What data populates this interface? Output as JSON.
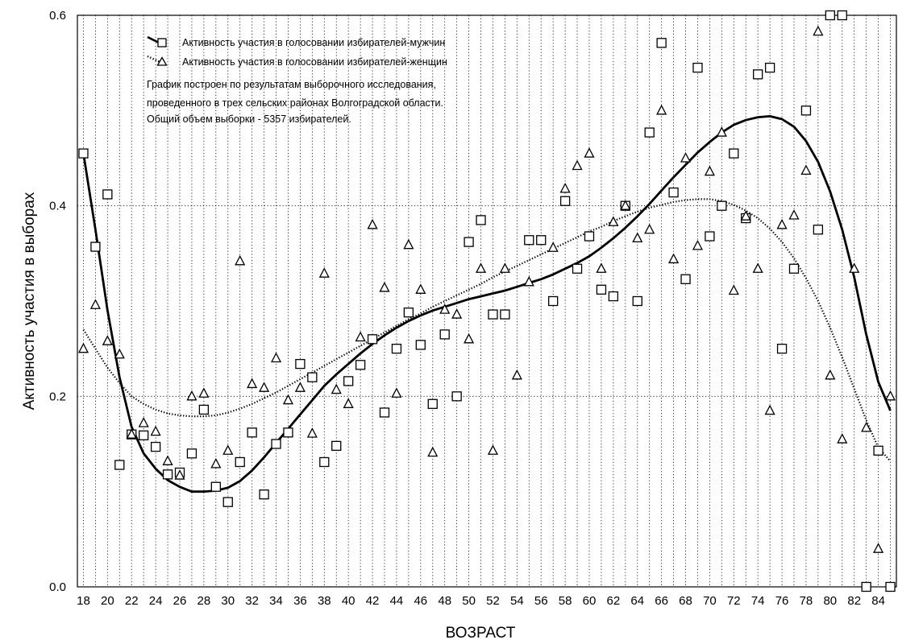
{
  "chart_data": {
    "type": "scatter",
    "xlabel": "ВОЗРАСТ",
    "ylabel": "Активность участия в выборах",
    "xlim": [
      17.5,
      85.5
    ],
    "ylim": [
      0,
      0.6
    ],
    "x_ticks": [
      18,
      20,
      22,
      24,
      26,
      28,
      30,
      32,
      34,
      36,
      38,
      40,
      42,
      44,
      46,
      48,
      50,
      52,
      54,
      56,
      58,
      60,
      62,
      64,
      66,
      68,
      70,
      72,
      74,
      76,
      78,
      80,
      82,
      84
    ],
    "y_ticks": [
      0,
      0.2,
      0.4,
      0.6
    ],
    "y_tick_labels": [
      "0.0",
      "0.2",
      "0.4",
      "0.6"
    ],
    "grid": true,
    "legend_position": "top-left",
    "note": [
      "График построен по результатам выборочного исследования,",
      "проведенного в трех сельских районах Волгоградской области.",
      "Общий объем выборки - 5357 избирателей."
    ],
    "series": [
      {
        "name": "Активность участия в голосовании избирателей-мужчин",
        "marker": "square",
        "line_style": "solid",
        "points": [
          [
            18,
            0.455
          ],
          [
            19,
            0.357
          ],
          [
            20,
            0.412
          ],
          [
            21,
            0.128
          ],
          [
            22,
            0.16
          ],
          [
            23,
            0.159
          ],
          [
            24,
            0.147
          ],
          [
            25,
            0.118
          ],
          [
            26,
            0.12
          ],
          [
            27,
            0.14
          ],
          [
            28,
            0.186
          ],
          [
            29,
            0.105
          ],
          [
            30,
            0.089
          ],
          [
            31,
            0.131
          ],
          [
            32,
            0.162
          ],
          [
            33,
            0.097
          ],
          [
            34,
            0.15
          ],
          [
            35,
            0.162
          ],
          [
            36,
            0.234
          ],
          [
            37,
            0.22
          ],
          [
            38,
            0.131
          ],
          [
            39,
            0.148
          ],
          [
            40,
            0.216
          ],
          [
            41,
            0.233
          ],
          [
            42,
            0.26
          ],
          [
            43,
            0.183
          ],
          [
            44,
            0.25
          ],
          [
            45,
            0.288
          ],
          [
            46,
            0.254
          ],
          [
            47,
            0.192
          ],
          [
            48,
            0.265
          ],
          [
            49,
            0.2
          ],
          [
            50,
            0.362
          ],
          [
            51,
            0.385
          ],
          [
            52,
            0.286
          ],
          [
            53,
            0.286
          ],
          [
            55,
            0.364
          ],
          [
            56,
            0.364
          ],
          [
            57,
            0.3
          ],
          [
            58,
            0.405
          ],
          [
            59,
            0.334
          ],
          [
            60,
            0.368
          ],
          [
            61,
            0.312
          ],
          [
            62,
            0.305
          ],
          [
            63,
            0.4
          ],
          [
            64,
            0.3
          ],
          [
            65,
            0.477
          ],
          [
            66,
            0.571
          ],
          [
            67,
            0.414
          ],
          [
            68,
            0.323
          ],
          [
            69,
            0.545
          ],
          [
            70,
            0.368
          ],
          [
            71,
            0.4
          ],
          [
            72,
            0.455
          ],
          [
            73,
            0.387
          ],
          [
            74,
            0.538
          ],
          [
            75,
            0.545
          ],
          [
            76,
            0.25
          ],
          [
            77,
            0.334
          ],
          [
            78,
            0.5
          ],
          [
            79,
            0.375
          ],
          [
            80,
            0.6
          ],
          [
            81,
            0.6
          ],
          [
            83,
            0.0
          ],
          [
            84,
            0.143
          ],
          [
            85,
            0.0
          ]
        ],
        "trend": [
          [
            18,
            0.455
          ],
          [
            19,
            0.375
          ],
          [
            20,
            0.29
          ],
          [
            21,
            0.22
          ],
          [
            22,
            0.168
          ],
          [
            23,
            0.14
          ],
          [
            24,
            0.124
          ],
          [
            25,
            0.112
          ],
          [
            26,
            0.105
          ],
          [
            27,
            0.1
          ],
          [
            28,
            0.1
          ],
          [
            29,
            0.101
          ],
          [
            30,
            0.104
          ],
          [
            31,
            0.111
          ],
          [
            32,
            0.122
          ],
          [
            33,
            0.136
          ],
          [
            34,
            0.151
          ],
          [
            35,
            0.166
          ],
          [
            36,
            0.181
          ],
          [
            37,
            0.196
          ],
          [
            38,
            0.211
          ],
          [
            39,
            0.223
          ],
          [
            40,
            0.234
          ],
          [
            41,
            0.245
          ],
          [
            42,
            0.255
          ],
          [
            43,
            0.264
          ],
          [
            44,
            0.272
          ],
          [
            45,
            0.279
          ],
          [
            46,
            0.285
          ],
          [
            47,
            0.29
          ],
          [
            48,
            0.294
          ],
          [
            49,
            0.298
          ],
          [
            50,
            0.302
          ],
          [
            51,
            0.305
          ],
          [
            52,
            0.308
          ],
          [
            53,
            0.311
          ],
          [
            54,
            0.315
          ],
          [
            55,
            0.319
          ],
          [
            56,
            0.323
          ],
          [
            57,
            0.328
          ],
          [
            58,
            0.334
          ],
          [
            59,
            0.34
          ],
          [
            60,
            0.347
          ],
          [
            61,
            0.356
          ],
          [
            62,
            0.366
          ],
          [
            63,
            0.377
          ],
          [
            64,
            0.389
          ],
          [
            65,
            0.402
          ],
          [
            66,
            0.416
          ],
          [
            67,
            0.43
          ],
          [
            68,
            0.443
          ],
          [
            69,
            0.456
          ],
          [
            70,
            0.467
          ],
          [
            71,
            0.477
          ],
          [
            72,
            0.485
          ],
          [
            73,
            0.49
          ],
          [
            74,
            0.493
          ],
          [
            75,
            0.494
          ],
          [
            76,
            0.491
          ],
          [
            77,
            0.483
          ],
          [
            78,
            0.468
          ],
          [
            79,
            0.446
          ],
          [
            80,
            0.415
          ],
          [
            81,
            0.375
          ],
          [
            82,
            0.325
          ],
          [
            83,
            0.265
          ],
          [
            84,
            0.215
          ],
          [
            85,
            0.185
          ]
        ]
      },
      {
        "name": "Активность участия в голосовании избирателей-женщин",
        "marker": "triangle",
        "line_style": "dotted",
        "points": [
          [
            18,
            0.25
          ],
          [
            19,
            0.296
          ],
          [
            20,
            0.258
          ],
          [
            21,
            0.244
          ],
          [
            22,
            0.16
          ],
          [
            23,
            0.172
          ],
          [
            24,
            0.163
          ],
          [
            25,
            0.132
          ],
          [
            26,
            0.117
          ],
          [
            27,
            0.2
          ],
          [
            28,
            0.203
          ],
          [
            29,
            0.129
          ],
          [
            30,
            0.143
          ],
          [
            31,
            0.342
          ],
          [
            32,
            0.213
          ],
          [
            33,
            0.209
          ],
          [
            34,
            0.24
          ],
          [
            35,
            0.196
          ],
          [
            36,
            0.209
          ],
          [
            37,
            0.161
          ],
          [
            38,
            0.329
          ],
          [
            39,
            0.207
          ],
          [
            40,
            0.192
          ],
          [
            41,
            0.262
          ],
          [
            42,
            0.38
          ],
          [
            43,
            0.314
          ],
          [
            44,
            0.203
          ],
          [
            45,
            0.359
          ],
          [
            46,
            0.312
          ],
          [
            47,
            0.141
          ],
          [
            48,
            0.291
          ],
          [
            49,
            0.286
          ],
          [
            50,
            0.26
          ],
          [
            51,
            0.334
          ],
          [
            52,
            0.143
          ],
          [
            53,
            0.334
          ],
          [
            54,
            0.222
          ],
          [
            55,
            0.32
          ],
          [
            57,
            0.356
          ],
          [
            58,
            0.418
          ],
          [
            59,
            0.442
          ],
          [
            60,
            0.455
          ],
          [
            61,
            0.334
          ],
          [
            62,
            0.383
          ],
          [
            63,
            0.4
          ],
          [
            64,
            0.366
          ],
          [
            65,
            0.375
          ],
          [
            66,
            0.5
          ],
          [
            67,
            0.344
          ],
          [
            68,
            0.45
          ],
          [
            69,
            0.358
          ],
          [
            70,
            0.436
          ],
          [
            71,
            0.477
          ],
          [
            72,
            0.311
          ],
          [
            73,
            0.389
          ],
          [
            74,
            0.334
          ],
          [
            75,
            0.185
          ],
          [
            76,
            0.38
          ],
          [
            77,
            0.39
          ],
          [
            78,
            0.437
          ],
          [
            79,
            0.583
          ],
          [
            80,
            0.222
          ],
          [
            81,
            0.155
          ],
          [
            82,
            0.334
          ],
          [
            83,
            0.167
          ],
          [
            84,
            0.04
          ],
          [
            85,
            0.2
          ]
        ],
        "trend": [
          [
            18,
            0.27
          ],
          [
            19,
            0.25
          ],
          [
            20,
            0.23
          ],
          [
            21,
            0.214
          ],
          [
            22,
            0.2
          ],
          [
            23,
            0.192
          ],
          [
            24,
            0.186
          ],
          [
            25,
            0.182
          ],
          [
            26,
            0.18
          ],
          [
            27,
            0.179
          ],
          [
            28,
            0.179
          ],
          [
            29,
            0.18
          ],
          [
            30,
            0.183
          ],
          [
            31,
            0.187
          ],
          [
            32,
            0.192
          ],
          [
            33,
            0.198
          ],
          [
            34,
            0.204
          ],
          [
            35,
            0.211
          ],
          [
            36,
            0.218
          ],
          [
            37,
            0.225
          ],
          [
            38,
            0.232
          ],
          [
            39,
            0.239
          ],
          [
            40,
            0.246
          ],
          [
            41,
            0.253
          ],
          [
            42,
            0.26
          ],
          [
            43,
            0.267
          ],
          [
            44,
            0.274
          ],
          [
            45,
            0.281
          ],
          [
            46,
            0.287
          ],
          [
            47,
            0.294
          ],
          [
            48,
            0.3
          ],
          [
            49,
            0.306
          ],
          [
            50,
            0.312
          ],
          [
            51,
            0.318
          ],
          [
            52,
            0.325
          ],
          [
            53,
            0.331
          ],
          [
            54,
            0.337
          ],
          [
            55,
            0.343
          ],
          [
            56,
            0.349
          ],
          [
            57,
            0.355
          ],
          [
            58,
            0.361
          ],
          [
            59,
            0.367
          ],
          [
            60,
            0.373
          ],
          [
            61,
            0.378
          ],
          [
            62,
            0.384
          ],
          [
            63,
            0.389
          ],
          [
            64,
            0.394
          ],
          [
            65,
            0.398
          ],
          [
            66,
            0.401
          ],
          [
            67,
            0.404
          ],
          [
            68,
            0.406
          ],
          [
            69,
            0.407
          ],
          [
            70,
            0.407
          ],
          [
            71,
            0.405
          ],
          [
            72,
            0.401
          ],
          [
            73,
            0.395
          ],
          [
            74,
            0.387
          ],
          [
            75,
            0.376
          ],
          [
            76,
            0.362
          ],
          [
            77,
            0.345
          ],
          [
            78,
            0.324
          ],
          [
            79,
            0.3
          ],
          [
            80,
            0.272
          ],
          [
            81,
            0.241
          ],
          [
            82,
            0.208
          ],
          [
            83,
            0.175
          ],
          [
            84,
            0.146
          ],
          [
            85,
            0.132
          ]
        ]
      }
    ]
  }
}
